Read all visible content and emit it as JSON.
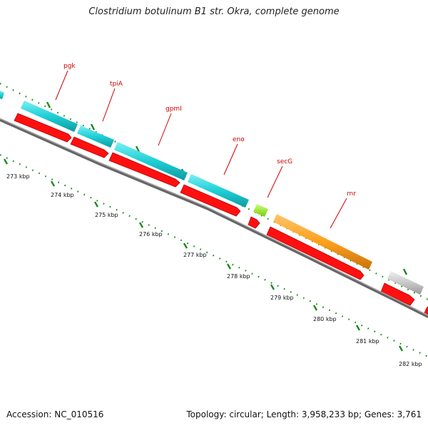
{
  "title": "Clostridium botulinum B1 str. Okra, complete genome",
  "footer": {
    "accession": "Accession: NC_010516",
    "summary": "Topology: circular; Length: 3,958,233 bp; Genes: 3,761"
  },
  "colors": {
    "cds": "#ff1010",
    "cds_dark": "#b80000",
    "cyan": "#1ecfd6",
    "cyan_dark": "#0f9aa0",
    "green": "#99ee22",
    "orange": "#ffa01e",
    "gray": "#c8c8c8",
    "backbone": "#888888",
    "tick": "#1a8a1a",
    "label": "#cc0000"
  },
  "gene_labels": [
    "pgk",
    "tpiA",
    "gpmI",
    "eno",
    "secG",
    "rnr"
  ],
  "kbp_labels": [
    "273 kbp",
    "274 kbp",
    "275 kbp",
    "276 kbp",
    "277 kbp",
    "278 kbp",
    "279 kbp",
    "280 kbp",
    "281 kbp",
    "282 kbp"
  ]
}
